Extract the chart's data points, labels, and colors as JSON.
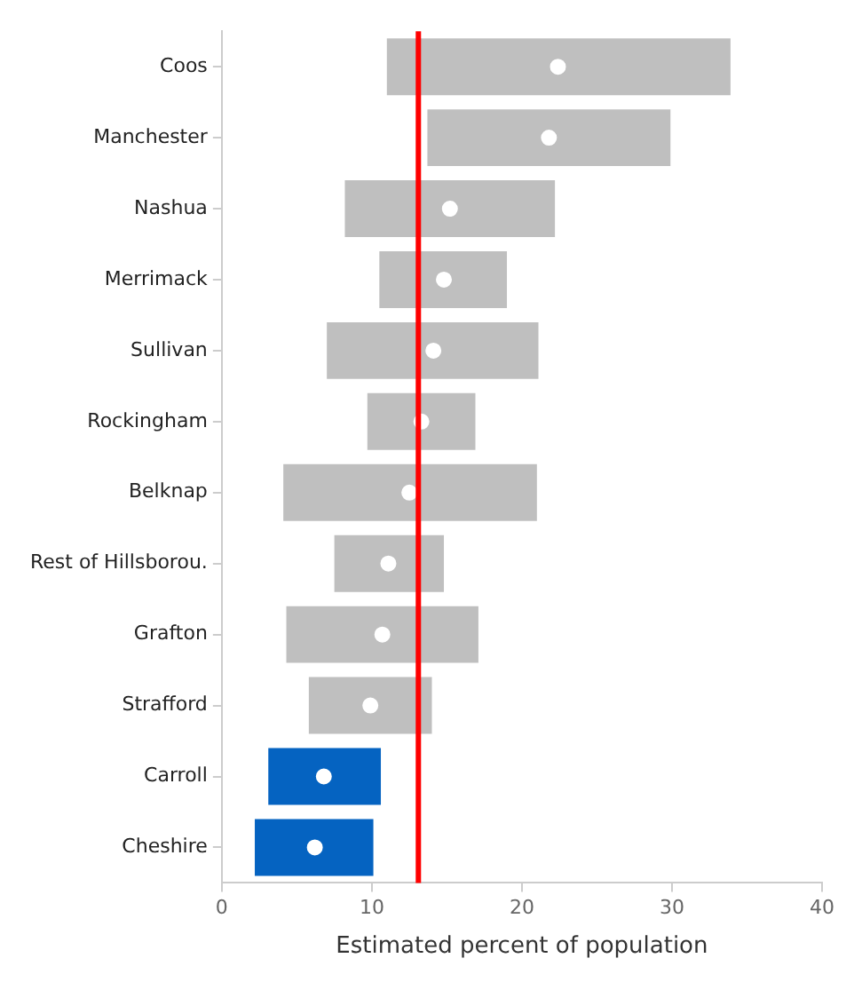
{
  "chart_data": {
    "type": "bar",
    "orientation": "horizontal",
    "xlabel": "Estimated percent of population",
    "categories": [
      "Coos",
      "Manchester",
      "Nashua",
      "Merrimack",
      "Sullivan",
      "Rockingham",
      "Belknap",
      "Rest of Hillsborou.",
      "Grafton",
      "Strafford",
      "Carroll",
      "Cheshire"
    ],
    "series": [
      {
        "base": [
          11.0,
          13.7,
          8.2,
          10.5,
          7.0,
          9.7,
          4.1,
          7.5,
          4.3,
          5.8,
          3.1,
          2.2
        ],
        "values": [
          22.9,
          16.2,
          14.0,
          8.5,
          14.1,
          7.2,
          16.9,
          7.3,
          12.8,
          8.2,
          7.5,
          7.9
        ],
        "colors": [
          "#bfbfbf",
          "#bfbfbf",
          "#bfbfbf",
          "#bfbfbf",
          "#bfbfbf",
          "#bfbfbf",
          "#bfbfbf",
          "#bfbfbf",
          "#bfbfbf",
          "#bfbfbf",
          "#0563c1",
          "#0563c1"
        ]
      },
      {
        "type": "scatter",
        "color": "#ffffff",
        "values": [
          22.4,
          21.8,
          15.2,
          14.8,
          14.1,
          13.3,
          12.5,
          11.1,
          10.7,
          9.9,
          6.8,
          6.2
        ]
      }
    ],
    "marker": "circle",
    "ref_lines": [
      {
        "axis": "x",
        "value": 13.1,
        "color": "#ff0000"
      }
    ],
    "xlim": [
      0,
      40
    ],
    "xticks": [
      0,
      10,
      20,
      30,
      40
    ],
    "grid": false,
    "legend": false
  }
}
